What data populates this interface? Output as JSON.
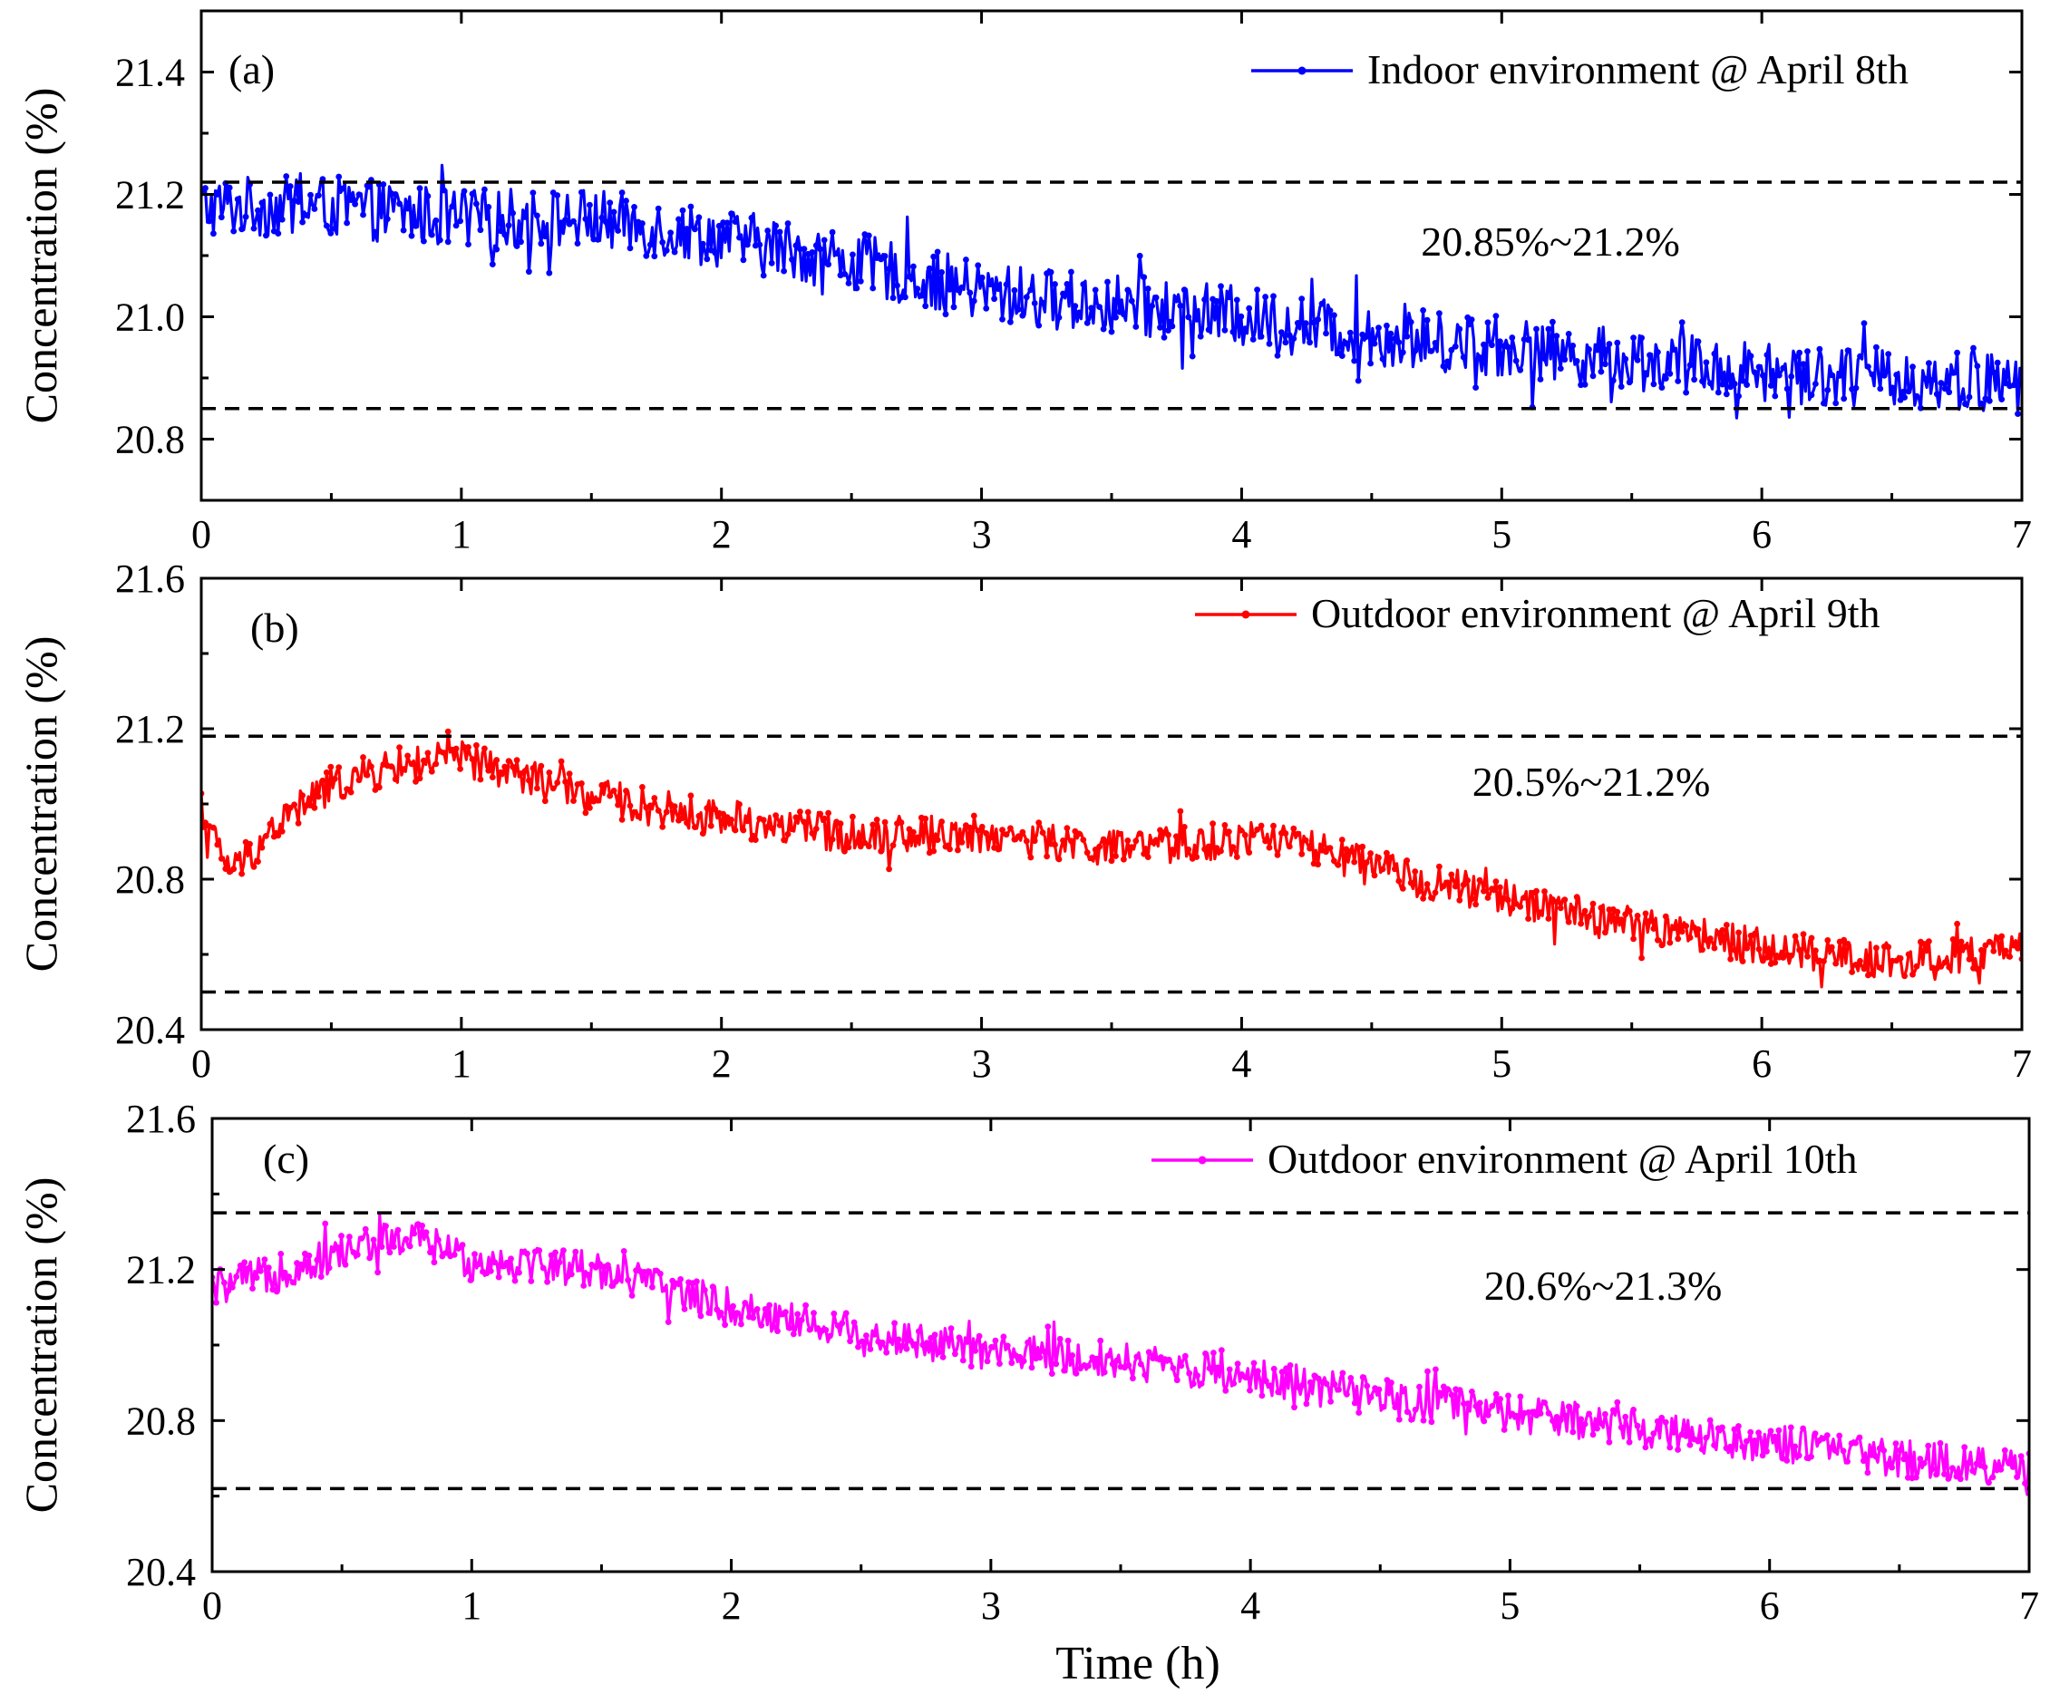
{
  "figure": {
    "xlabel": "Time (h)"
  },
  "chart_data": [
    {
      "type": "line",
      "panel_label": "(a)",
      "xlim": [
        0,
        7
      ],
      "ylim": [
        20.7,
        21.5
      ],
      "x_ticks": [
        0,
        1,
        2,
        3,
        4,
        5,
        6,
        7
      ],
      "y_ticks": [
        20.8,
        21.0,
        21.2,
        21.4
      ],
      "x_tick_labels": [
        "0",
        "1",
        "2",
        "3",
        "4",
        "5",
        "6",
        "7"
      ],
      "y_tick_labels": [
        "20.8",
        "21.0",
        "21.2",
        "21.4"
      ],
      "ylabel": "Concentration (%)",
      "legend_position": "top-right",
      "series": [
        {
          "name": "Indoor environment @ April 8th",
          "color": "#0000ff",
          "x": [
            0,
            0.5,
            1.0,
            1.5,
            2.0,
            2.5,
            3.0,
            3.5,
            4.0,
            4.5,
            5.0,
            5.5,
            6.0,
            6.5,
            7.0
          ],
          "values": [
            21.18,
            21.18,
            21.16,
            21.16,
            21.13,
            21.09,
            21.04,
            21.02,
            21.0,
            20.97,
            20.95,
            20.93,
            20.91,
            20.9,
            20.89
          ],
          "noise_amplitude": 0.05
        }
      ],
      "reference_lines": [
        21.22,
        20.85
      ],
      "annotation": "20.85%~21.2%"
    },
    {
      "type": "line",
      "panel_label": "(b)",
      "xlim": [
        0,
        7
      ],
      "ylim": [
        20.4,
        21.6
      ],
      "x_ticks": [
        0,
        1,
        2,
        3,
        4,
        5,
        6,
        7
      ],
      "y_ticks": [
        20.4,
        20.8,
        21.2,
        21.6
      ],
      "x_tick_labels": [
        "0",
        "1",
        "2",
        "3",
        "4",
        "5",
        "6",
        "7"
      ],
      "y_tick_labels": [
        "20.4",
        "20.8",
        "21.2",
        "21.6"
      ],
      "ylabel": "Concentration (%)",
      "legend_position": "top-right",
      "series": [
        {
          "name": "Outdoor environment @ April 9th",
          "color": "#ff0000",
          "x": [
            0,
            0.05,
            0.12,
            0.3,
            0.5,
            0.75,
            1.0,
            1.25,
            1.5,
            2.0,
            2.5,
            3.0,
            3.5,
            4.0,
            4.1,
            4.5,
            5.0,
            5.5,
            6.0,
            6.5,
            7.0
          ],
          "values": [
            20.98,
            20.9,
            20.82,
            20.95,
            21.05,
            21.1,
            21.12,
            21.07,
            21.02,
            20.96,
            20.92,
            20.92,
            20.88,
            20.9,
            20.92,
            20.83,
            20.75,
            20.68,
            20.62,
            20.58,
            20.61
          ],
          "noise_amplitude": 0.05
        }
      ],
      "reference_lines": [
        21.18,
        20.5
      ],
      "annotation": "20.5%~21.2%"
    },
    {
      "type": "line",
      "panel_label": "(c)",
      "xlim": [
        0,
        7
      ],
      "ylim": [
        20.4,
        21.6
      ],
      "x_ticks": [
        0,
        1,
        2,
        3,
        4,
        5,
        6,
        7
      ],
      "y_ticks": [
        20.4,
        20.8,
        21.2,
        21.6
      ],
      "x_tick_labels": [
        "0",
        "1",
        "2",
        "3",
        "4",
        "5",
        "6",
        "7"
      ],
      "y_tick_labels": [
        "20.4",
        "20.8",
        "21.2",
        "21.6"
      ],
      "ylabel": "Concentration (%)",
      "legend_position": "top-right",
      "series": [
        {
          "name": "Outdoor environment @ April 10th",
          "color": "#ff00ff",
          "x": [
            0,
            0.3,
            0.6,
            0.8,
            1.0,
            1.2,
            1.5,
            2.0,
            2.5,
            3.0,
            3.5,
            4.0,
            4.5,
            5.0,
            5.5,
            6.0,
            6.5,
            7.0
          ],
          "values": [
            21.15,
            21.2,
            21.27,
            21.28,
            21.22,
            21.22,
            21.2,
            21.1,
            21.03,
            20.98,
            20.96,
            20.92,
            20.86,
            20.82,
            20.78,
            20.74,
            20.7,
            20.67
          ],
          "noise_amplitude": 0.05
        }
      ],
      "reference_lines": [
        21.35,
        20.62
      ],
      "annotation": "20.6%~21.3%"
    }
  ]
}
